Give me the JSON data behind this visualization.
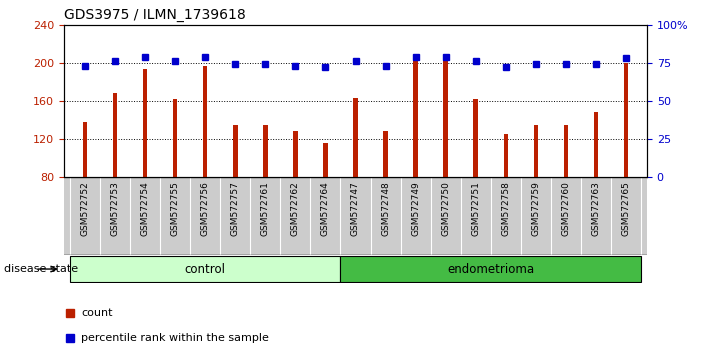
{
  "title": "GDS3975 / ILMN_1739618",
  "samples": [
    "GSM572752",
    "GSM572753",
    "GSM572754",
    "GSM572755",
    "GSM572756",
    "GSM572757",
    "GSM572761",
    "GSM572762",
    "GSM572764",
    "GSM572747",
    "GSM572748",
    "GSM572749",
    "GSM572750",
    "GSM572751",
    "GSM572758",
    "GSM572759",
    "GSM572760",
    "GSM572763",
    "GSM572765"
  ],
  "counts": [
    138,
    168,
    193,
    162,
    197,
    135,
    135,
    128,
    116,
    163,
    128,
    205,
    208,
    162,
    125,
    135,
    135,
    148,
    200
  ],
  "percentiles": [
    73,
    76,
    79,
    76,
    79,
    74,
    74,
    73,
    72,
    76,
    73,
    79,
    79,
    76,
    72,
    74,
    74,
    74,
    78
  ],
  "control_count": 9,
  "endometrioma_count": 10,
  "ylim_left": [
    80,
    240
  ],
  "ylim_right": [
    0,
    100
  ],
  "yticks_left": [
    80,
    120,
    160,
    200,
    240
  ],
  "yticks_right": [
    0,
    25,
    50,
    75,
    100
  ],
  "ytick_labels_right": [
    "0",
    "25",
    "50",
    "75",
    "100%"
  ],
  "bar_color": "#bb2000",
  "dot_color": "#0000cc",
  "control_color_light": "#ccffcc",
  "endometrioma_color": "#44bb44",
  "tick_bg_color": "#cccccc",
  "legend_items": [
    "count",
    "percentile rank within the sample"
  ]
}
